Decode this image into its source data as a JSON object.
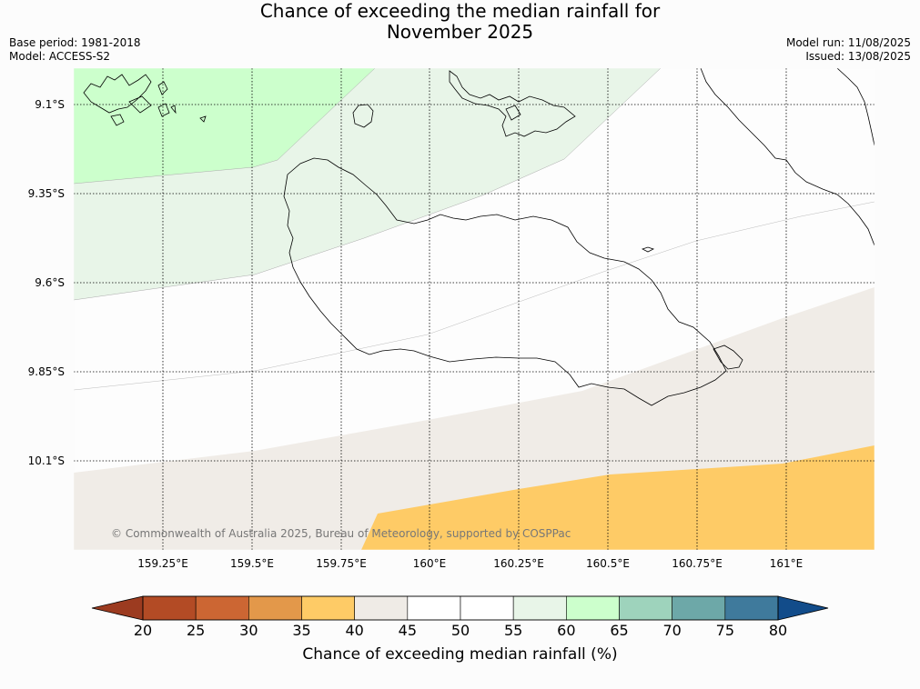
{
  "title_line1": "Chance of exceeding the median rainfall for",
  "title_line2": "November 2025",
  "base_period": "Base period: 1981-2018",
  "model": "Model: ACCESS-S2",
  "model_run": "Model run: 11/08/2025",
  "issued": "Issued: 13/08/2025",
  "copyright": "© Commonwealth of Australia 2025, Bureau of Meteorology, supported by COSPPac",
  "lat_labels": [
    "9.1°S",
    "9.35°S",
    "9.6°S",
    "9.85°S",
    "10.1°S"
  ],
  "lon_labels": [
    "159.25°E",
    "159.5°E",
    "159.75°E",
    "160°E",
    "160.25°E",
    "160.5°E",
    "160.75°E",
    "161°E"
  ],
  "colorbar": {
    "label": "Chance of exceeding median rainfall (%)",
    "ticks": [
      "20",
      "25",
      "30",
      "35",
      "40",
      "45",
      "50",
      "55",
      "60",
      "65",
      "70",
      "75",
      "80"
    ],
    "colors": [
      "#b34b25",
      "#cc6633",
      "#e3984a",
      "#fecb66",
      "#efebe6",
      "#ffffff",
      "#ffffff",
      "#e8f5e8",
      "#ccffcc",
      "#9ed3bc",
      "#6da8a8",
      "#3f7a9c"
    ],
    "under_color": "#9c3b20",
    "over_color": "#124c8a"
  },
  "region_colors": {
    "c60_65": "#ccffcc",
    "c55_60": "#e8f5e8",
    "c45_50": "#fdfdfd",
    "c40_45": "#f0ece7",
    "c35_40": "#fecb66"
  }
}
